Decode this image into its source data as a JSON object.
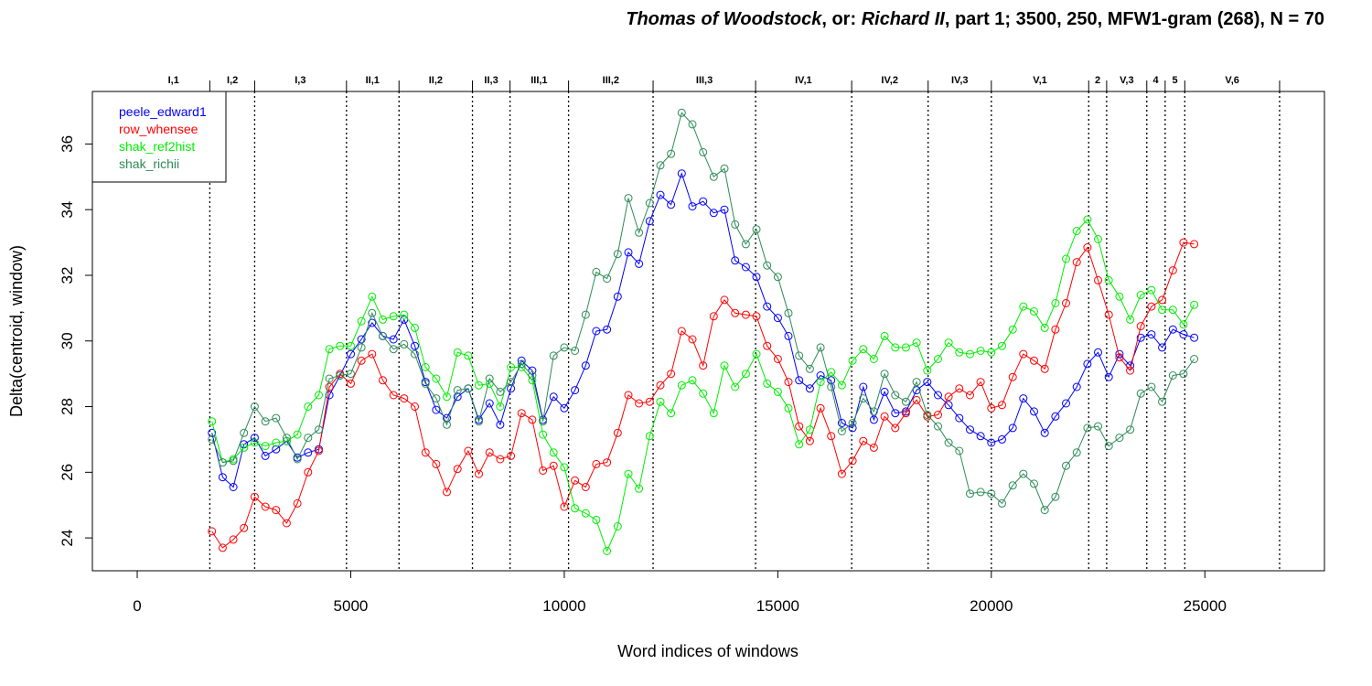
{
  "chart_data": {
    "type": "line",
    "title_parts": [
      {
        "text": "Thomas of Woodstock",
        "italic": true
      },
      {
        "text": ", or: ",
        "italic": false
      },
      {
        "text": "Richard II",
        "italic": true
      },
      {
        "text": ", part 1; 3500, 250, MFW1-gram (268), N = 70",
        "italic": false
      }
    ],
    "xlabel": "Word indices of windows",
    "ylabel": "Delta(centroid, window)",
    "xlim": [
      -1050,
      27800
    ],
    "ylim": [
      23.0,
      37.6
    ],
    "xticks": [
      0,
      5000,
      10000,
      15000,
      20000,
      25000
    ],
    "xtick_labels": [
      "0",
      "5000",
      "10000",
      "15000",
      "20000",
      "25000"
    ],
    "yticks": [
      24,
      26,
      28,
      30,
      32,
      34,
      36
    ],
    "ytick_labels": [
      "24",
      "26",
      "28",
      "30",
      "32",
      "34",
      "36"
    ],
    "legend_position": "top-left",
    "scene_boundaries": [
      1700,
      2750,
      4900,
      6130,
      7850,
      8730,
      10100,
      12080,
      14480,
      16730,
      18520,
      20000,
      22280,
      22700,
      23640,
      24070,
      24530,
      26750
    ],
    "scene_labels": [
      {
        "label": "I,1",
        "x": 850
      },
      {
        "label": "I,2",
        "x": 2230
      },
      {
        "label": "I,3",
        "x": 3820
      },
      {
        "label": "II,1",
        "x": 5510
      },
      {
        "label": "II,2",
        "x": 6990
      },
      {
        "label": "II,3",
        "x": 8290
      },
      {
        "label": "III,1",
        "x": 9410
      },
      {
        "label": "III,2",
        "x": 11090
      },
      {
        "label": "III,3",
        "x": 13280
      },
      {
        "label": "IV,1",
        "x": 15600
      },
      {
        "label": "IV,2",
        "x": 17620
      },
      {
        "label": "IV,3",
        "x": 19260
      },
      {
        "label": "V,1",
        "x": 21140
      },
      {
        "label": "2",
        "x": 22490
      },
      {
        "label": "V,3",
        "x": 23170
      },
      {
        "label": "4",
        "x": 23850
      },
      {
        "label": "5",
        "x": 24300
      },
      {
        "label": "V,6",
        "x": 25640
      }
    ],
    "x_start": 1750,
    "x_step": 250,
    "series": [
      {
        "name": "peele_edward1",
        "color": "#0000ff",
        "values": [
          27.2,
          25.85,
          25.55,
          26.85,
          27.05,
          26.5,
          26.7,
          26.95,
          26.45,
          26.6,
          26.7,
          28.35,
          28.95,
          29.6,
          30.05,
          30.55,
          30.15,
          30.05,
          30.65,
          29.85,
          28.75,
          27.9,
          27.65,
          28.3,
          28.55,
          27.6,
          28.1,
          27.45,
          28.55,
          29.4,
          29.1,
          27.6,
          28.3,
          27.95,
          28.5,
          29.25,
          30.3,
          30.35,
          31.35,
          32.7,
          32.35,
          33.65,
          34.45,
          34.15,
          35.1,
          34.1,
          34.25,
          33.9,
          34.0,
          32.45,
          32.25,
          31.95,
          31.05,
          30.7,
          30.15,
          28.8,
          28.55,
          28.95,
          28.8,
          27.5,
          27.35,
          28.6,
          27.6,
          28.45,
          27.8,
          27.85,
          28.5,
          28.75,
          28.35,
          28.05,
          27.65,
          27.3,
          27.1,
          26.9,
          27.0,
          27.35,
          28.25,
          27.85,
          27.2,
          27.7,
          28.1,
          28.6,
          29.3,
          29.65,
          28.9,
          29.6,
          29.25,
          30.1,
          30.2,
          29.8,
          30.35,
          30.2,
          30.1
        ]
      },
      {
        "name": "row_whensee",
        "color": "#ff0000",
        "values": [
          24.2,
          23.7,
          23.95,
          24.3,
          25.25,
          24.95,
          24.85,
          24.45,
          25.05,
          26.0,
          26.65,
          28.6,
          29.0,
          28.7,
          29.4,
          29.6,
          28.8,
          28.35,
          28.25,
          28.0,
          26.6,
          26.25,
          25.4,
          26.1,
          26.65,
          25.95,
          26.6,
          26.4,
          26.5,
          27.8,
          27.6,
          26.05,
          26.2,
          24.95,
          25.75,
          25.55,
          26.25,
          26.3,
          27.2,
          28.35,
          28.1,
          28.15,
          28.65,
          29.0,
          30.3,
          30.05,
          29.25,
          30.75,
          31.25,
          30.85,
          30.8,
          30.75,
          29.85,
          29.45,
          28.75,
          27.4,
          26.95,
          27.95,
          27.1,
          25.95,
          26.35,
          26.95,
          26.75,
          27.7,
          27.35,
          27.8,
          28.2,
          27.7,
          27.75,
          28.3,
          28.55,
          28.35,
          28.75,
          27.95,
          28.05,
          28.9,
          29.6,
          29.4,
          29.15,
          30.35,
          31.15,
          32.4,
          32.85,
          31.85,
          30.8,
          29.5,
          29.1,
          30.45,
          31.05,
          31.25,
          32.15,
          33.0,
          32.95
        ]
      },
      {
        "name": "shak_ref2hist",
        "color": "#00ee00",
        "values": [
          27.55,
          26.3,
          26.4,
          26.75,
          26.9,
          26.8,
          26.9,
          26.95,
          27.15,
          28.0,
          28.35,
          29.75,
          29.85,
          29.85,
          30.6,
          31.35,
          30.65,
          30.75,
          30.8,
          30.4,
          29.2,
          28.85,
          28.3,
          29.65,
          29.55,
          28.65,
          28.7,
          28.0,
          29.2,
          29.2,
          28.8,
          27.15,
          26.6,
          26.15,
          24.9,
          24.75,
          24.55,
          23.6,
          24.35,
          25.95,
          25.5,
          27.1,
          28.15,
          27.8,
          28.65,
          28.8,
          28.4,
          27.8,
          29.25,
          28.6,
          29.0,
          29.6,
          28.7,
          28.45,
          27.95,
          26.85,
          27.3,
          28.75,
          29.05,
          28.65,
          29.4,
          29.75,
          29.45,
          30.15,
          29.8,
          29.8,
          29.95,
          29.1,
          29.45,
          29.95,
          29.65,
          29.6,
          29.7,
          29.65,
          29.85,
          30.35,
          31.05,
          30.9,
          30.4,
          31.15,
          32.5,
          33.35,
          33.7,
          33.1,
          31.85,
          31.35,
          30.65,
          31.4,
          31.55,
          30.95,
          30.95,
          30.5,
          31.1
        ]
      },
      {
        "name": "shak_richii",
        "color": "#2e8b57",
        "values": [
          27.0,
          26.3,
          26.35,
          27.2,
          28.0,
          27.55,
          27.65,
          27.05,
          26.4,
          27.05,
          27.3,
          28.85,
          28.95,
          29.0,
          29.8,
          30.85,
          30.15,
          29.75,
          29.9,
          29.6,
          28.7,
          28.25,
          27.45,
          28.5,
          28.55,
          27.55,
          28.85,
          28.45,
          28.75,
          29.3,
          28.95,
          27.55,
          29.55,
          29.8,
          29.7,
          30.8,
          32.1,
          31.9,
          32.65,
          34.35,
          33.3,
          34.2,
          35.35,
          35.7,
          36.95,
          36.6,
          35.75,
          35.0,
          35.25,
          33.55,
          32.95,
          33.4,
          32.3,
          31.95,
          30.85,
          29.55,
          29.15,
          29.8,
          28.6,
          27.25,
          27.5,
          28.25,
          27.85,
          29.0,
          28.35,
          28.15,
          28.75,
          27.75,
          27.4,
          26.9,
          26.65,
          25.35,
          25.4,
          25.35,
          25.05,
          25.6,
          25.95,
          25.65,
          24.85,
          25.25,
          26.2,
          26.6,
          27.35,
          27.4,
          26.8,
          27.05,
          27.3,
          28.4,
          28.6,
          28.15,
          28.95,
          29.0,
          29.45
        ]
      }
    ]
  }
}
